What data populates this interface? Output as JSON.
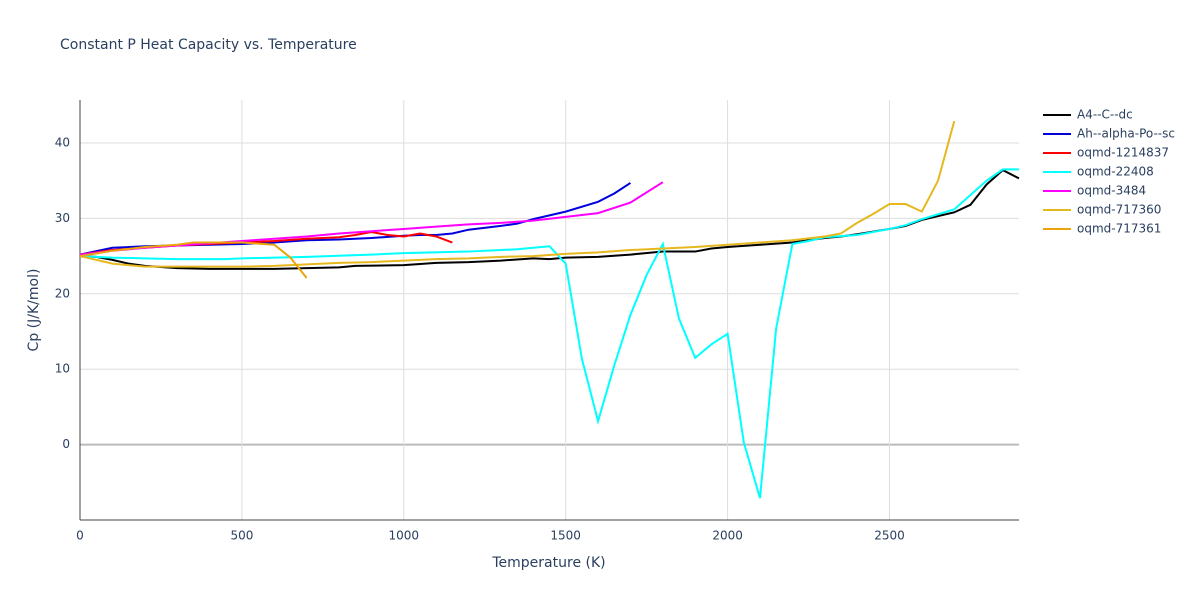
{
  "chart_data": {
    "type": "line",
    "title": "Constant P Heat Capacity vs. Temperature",
    "x_label": "Temperature (K)",
    "y_label": "Cp (J/K/mol)",
    "xlim": [
      0,
      2900
    ],
    "ylim": [
      -10,
      45.7
    ],
    "xticks": [
      0,
      500,
      1000,
      1500,
      2000,
      2500
    ],
    "yticks": [
      0,
      10,
      20,
      30,
      40
    ],
    "grid": true,
    "legend": "right",
    "series": [
      {
        "name": "A4--C--dc",
        "color": "#000000",
        "x": [
          0,
          50,
          100,
          150,
          200,
          300,
          400,
          500,
          600,
          700,
          800,
          850,
          1000,
          1100,
          1200,
          1300,
          1400,
          1450,
          1500,
          1600,
          1700,
          1800,
          1900,
          1950,
          2000,
          2100,
          2200,
          2300,
          2350,
          2400,
          2500,
          2550,
          2600,
          2700,
          2750,
          2800,
          2850,
          2900
        ],
        "values": [
          25,
          24.9,
          24.5,
          24,
          23.7,
          23.4,
          23.3,
          23.3,
          23.3,
          23.4,
          23.5,
          23.7,
          23.8,
          24.1,
          24.2,
          24.4,
          24.7,
          24.6,
          24.8,
          24.9,
          25.2,
          25.6,
          25.6,
          26,
          26.2,
          26.5,
          26.8,
          27.4,
          27.6,
          27.9,
          28.6,
          29,
          29.8,
          30.8,
          31.8,
          34.5,
          36.4,
          35.3
        ]
      },
      {
        "name": "Ah--alpha-Po--sc",
        "color": "#0000dd",
        "x": [
          0,
          100,
          200,
          300,
          400,
          500,
          600,
          700,
          800,
          900,
          1000,
          1050,
          1100,
          1150,
          1200,
          1300,
          1350,
          1400,
          1500,
          1600,
          1650,
          1700
        ],
        "values": [
          25.2,
          26.1,
          26.3,
          26.4,
          26.5,
          26.6,
          26.8,
          27.1,
          27.2,
          27.4,
          27.7,
          27.8,
          27.8,
          28,
          28.5,
          29,
          29.3,
          29.9,
          30.9,
          32.2,
          33.3,
          34.7
        ]
      },
      {
        "name": "oqmd-1214837",
        "color": "#ff0000",
        "x": [
          0,
          100,
          200,
          300,
          400,
          500,
          600,
          700,
          800,
          850,
          900,
          950,
          1000,
          1050,
          1100,
          1150
        ],
        "values": [
          25.2,
          25.8,
          26.1,
          26.4,
          26.6,
          26.8,
          27,
          27.3,
          27.5,
          27.8,
          28.2,
          27.8,
          27.6,
          28,
          27.6,
          26.8
        ]
      },
      {
        "name": "oqmd-22408",
        "color": "#00ffff",
        "x": [
          0,
          100,
          200,
          300,
          400,
          450,
          500,
          700,
          900,
          1000,
          1200,
          1350,
          1450,
          1500,
          1550,
          1600,
          1650,
          1700,
          1750,
          1800,
          1850,
          1900,
          1950,
          2000,
          2050,
          2100,
          2150,
          2200,
          2250,
          2300,
          2400,
          2500,
          2550,
          2600,
          2700,
          2800,
          2850,
          2900
        ],
        "values": [
          25,
          24.8,
          24.7,
          24.6,
          24.6,
          24.6,
          24.7,
          24.9,
          25.2,
          25.4,
          25.6,
          25.9,
          26.3,
          24,
          11.4,
          3.1,
          10.5,
          17.2,
          22.5,
          26.6,
          16.7,
          11.5,
          13.3,
          14.7,
          0.3,
          -7.1,
          15.4,
          26.6,
          27,
          27.5,
          27.8,
          28.6,
          29.1,
          29.9,
          31.2,
          35,
          36.5,
          36.5
        ]
      },
      {
        "name": "oqmd-3484",
        "color": "#ff00ff",
        "x": [
          0,
          100,
          200,
          300,
          400,
          500,
          600,
          700,
          800,
          900,
          1000,
          1100,
          1200,
          1300,
          1400,
          1500,
          1600,
          1700,
          1800
        ],
        "values": [
          25.2,
          25.7,
          26.1,
          26.4,
          26.7,
          27,
          27.3,
          27.6,
          28,
          28.3,
          28.6,
          28.9,
          29.2,
          29.4,
          29.7,
          30.2,
          30.7,
          32.1,
          34.8
        ]
      },
      {
        "name": "oqmd-717360",
        "color": "#e6b81e",
        "x": [
          0,
          100,
          200,
          300,
          400,
          500,
          600,
          700,
          800,
          900,
          1000,
          1100,
          1200,
          1300,
          1400,
          1500,
          1600,
          1700,
          1800,
          1900,
          2000,
          2100,
          2200,
          2300,
          2350,
          2400,
          2450,
          2500,
          2550,
          2600,
          2650,
          2700
        ],
        "values": [
          25,
          24,
          23.6,
          23.6,
          23.6,
          23.6,
          23.7,
          23.9,
          24.1,
          24.2,
          24.4,
          24.6,
          24.7,
          24.9,
          25,
          25.3,
          25.5,
          25.8,
          26,
          26.2,
          26.5,
          26.8,
          27.1,
          27.6,
          28,
          29.4,
          30.6,
          31.9,
          31.9,
          30.9,
          35,
          42.9
        ]
      },
      {
        "name": "oqmd-717361",
        "color": "#eaa50c",
        "x": [
          0,
          100,
          200,
          300,
          350,
          400,
          500,
          600,
          650,
          700
        ],
        "values": [
          25,
          25.7,
          26.2,
          26.5,
          26.8,
          26.8,
          26.8,
          26.5,
          24.8,
          22.1
        ]
      }
    ]
  }
}
